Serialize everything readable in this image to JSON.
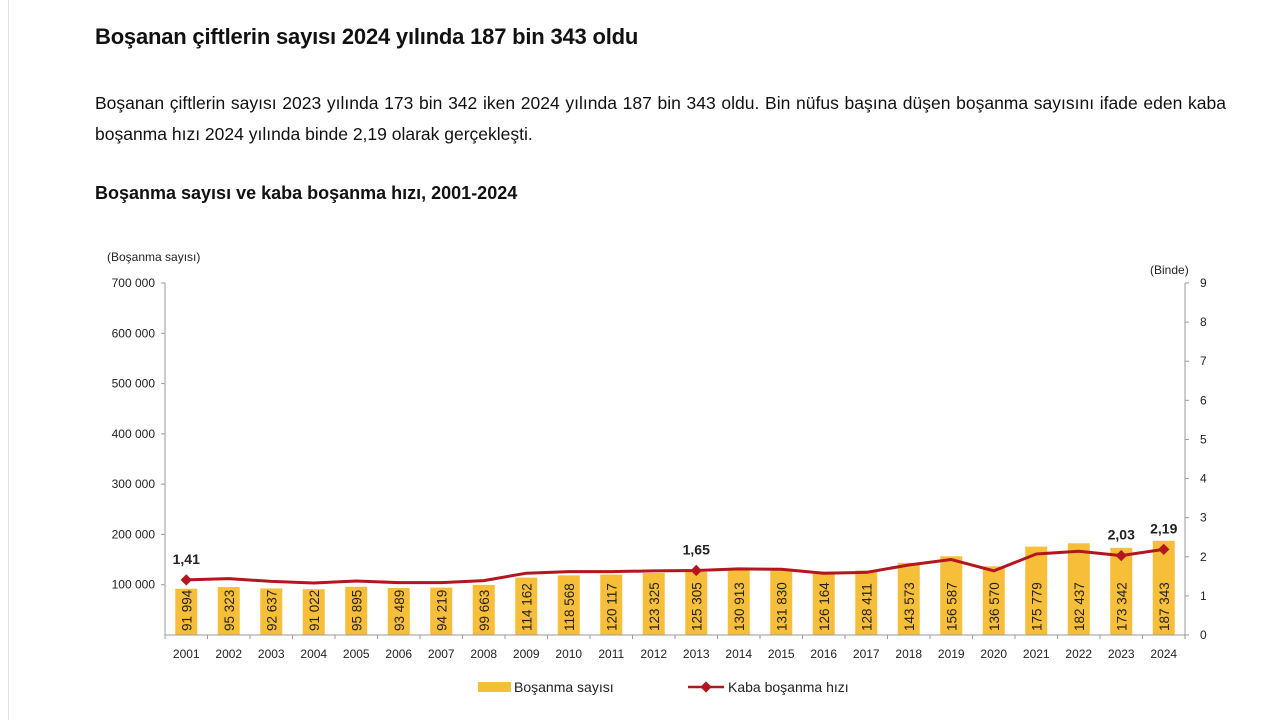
{
  "article": {
    "headline": "Boşanan çiftlerin sayısı 2024 yılında 187 bin 343 oldu",
    "lead": "Boşanan çiftlerin sayısı 2023 yılında 173 bin 342 iken 2024 yılında 187 bin 343 oldu. Bin nüfus başına düşen boşanma sayısını ifade eden kaba boşanma hızı 2024 yılında binde 2,19 olarak gerçekleşti.",
    "chart_title": "Boşanma sayısı ve kaba boşanma hızı, 2001-2024"
  },
  "colors": {
    "bar": "#F7BE3A",
    "line": "#B3161F",
    "axis": "#9a9a9a"
  },
  "chart_data": {
    "type": "bar",
    "combo": "bar + line (secondary axis)",
    "title": "Boşanma sayısı ve kaba boşanma hızı, 2001-2024",
    "ylabel_left": "(Boşanma sayısı)",
    "ylabel_right": "(Binde)",
    "ylim_left": [
      0,
      700000
    ],
    "ylim_right": [
      0,
      9
    ],
    "yticks_left": [
      "700 000",
      "600 000",
      "500 000",
      "400 000",
      "300 000",
      "200 000",
      "100 000"
    ],
    "yticks_left_values": [
      700000,
      600000,
      500000,
      400000,
      300000,
      200000,
      100000
    ],
    "yticks_right": [
      "9",
      "8",
      "7",
      "6",
      "5",
      "4",
      "3",
      "2",
      "1",
      "0"
    ],
    "legend_position": "bottom",
    "grid": false,
    "categories": [
      "2001",
      "2002",
      "2003",
      "2004",
      "2005",
      "2006",
      "2007",
      "2008",
      "2009",
      "2010",
      "2011",
      "2012",
      "2013",
      "2014",
      "2015",
      "2016",
      "2017",
      "2018",
      "2019",
      "2020",
      "2021",
      "2022",
      "2023",
      "2024"
    ],
    "series": [
      {
        "name": "Boşanma sayısı",
        "type": "bar",
        "axis": "left",
        "values": [
          91994,
          95323,
          92637,
          91022,
          95895,
          93489,
          94219,
          99663,
          114162,
          118568,
          120117,
          123325,
          125305,
          130913,
          131830,
          126164,
          128411,
          143573,
          156587,
          136570,
          175779,
          182437,
          173342,
          187343
        ],
        "labels": [
          "91 994",
          "95 323",
          "92 637",
          "91 022",
          "95 895",
          "93 489",
          "94 219",
          "99 663",
          "114 162",
          "118 568",
          "120 117",
          "123 325",
          "125 305",
          "130 913",
          "131 830",
          "126 164",
          "128 411",
          "143 573",
          "156 587",
          "136 570",
          "175 779",
          "182 437",
          "173 342",
          "187 343"
        ]
      },
      {
        "name": "Kaba boşanma hızı",
        "type": "line",
        "axis": "right",
        "values": [
          1.41,
          1.44,
          1.37,
          1.33,
          1.38,
          1.34,
          1.34,
          1.39,
          1.58,
          1.62,
          1.62,
          1.64,
          1.65,
          1.69,
          1.68,
          1.58,
          1.6,
          1.79,
          1.93,
          1.64,
          2.07,
          2.14,
          2.03,
          2.19
        ],
        "point_labels": [
          {
            "year": "2001",
            "text": "1,41"
          },
          {
            "year": "2013",
            "text": "1,65"
          },
          {
            "year": "2023",
            "text": "2,03"
          },
          {
            "year": "2024",
            "text": "2,19"
          }
        ]
      }
    ]
  }
}
